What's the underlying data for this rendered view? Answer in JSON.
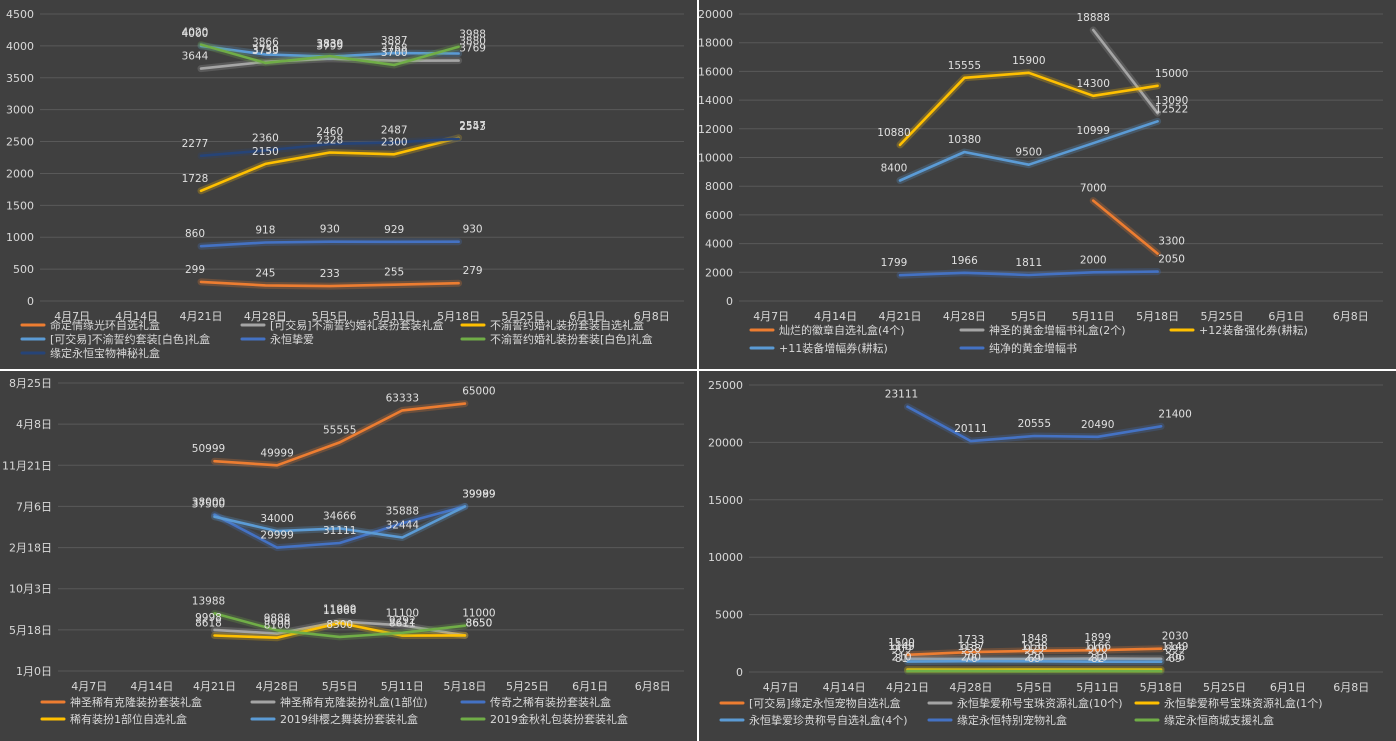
{
  "colors": {
    "orange": "#ed7d31",
    "gray": "#a5a5a5",
    "yellow": "#ffc000",
    "lightblue": "#5b9bd5",
    "blue": "#4472c4",
    "green": "#70ad47",
    "navy": "#264478"
  },
  "chart_data": [
    {
      "type": "line",
      "categories": [
        "4月7日",
        "4月14日",
        "4月21日",
        "4月28日",
        "5月5日",
        "5月11日",
        "5月18日",
        "5月25日",
        "6月1日",
        "6月8日"
      ],
      "y_ticks": [
        "0",
        "500",
        "1000",
        "1500",
        "2000",
        "2500",
        "3000",
        "3500",
        "4000",
        "4500"
      ],
      "ylim": [
        0,
        4500
      ],
      "grid": "horizontal",
      "legend_position": "bottom",
      "series": [
        {
          "name": "命定情缘光环自选礼盒",
          "color": "orange",
          "values": [
            null,
            null,
            299,
            245,
            233,
            255,
            279,
            null,
            null,
            null
          ],
          "labels": [
            "299",
            "245",
            "233",
            "255",
            "279"
          ]
        },
        {
          "name": "[可交易]不渝誓约婚礼装扮套装礼盒",
          "color": "gray",
          "values": [
            null,
            null,
            3644,
            3750,
            3799,
            3768,
            3769,
            null,
            null,
            null
          ],
          "labels": [
            "3644",
            "3750",
            "3799",
            "3768",
            "3769"
          ]
        },
        {
          "name": "不渝誓约婚礼装扮套装自选礼盒",
          "color": "yellow",
          "values": [
            null,
            null,
            1728,
            2150,
            2328,
            2300,
            2557,
            null,
            null,
            null
          ],
          "labels": [
            "1728",
            "2150",
            "2328",
            "2300",
            "2557"
          ]
        },
        {
          "name": "[可交易]不渝誓约套装[白色]礼盒",
          "color": "lightblue",
          "values": [
            null,
            null,
            4000,
            3866,
            3830,
            3887,
            3880,
            null,
            null,
            null
          ],
          "labels": [
            "4000",
            "3866",
            "3830",
            "3887",
            "3880"
          ]
        },
        {
          "name": "永恒挚爱",
          "color": "blue",
          "values": [
            null,
            null,
            860,
            918,
            930,
            929,
            930,
            null,
            null,
            null
          ],
          "labels": [
            "860",
            "918",
            "930",
            "929",
            "930"
          ]
        },
        {
          "name": "不渝誓约婚礼装扮套装[白色]礼盒",
          "color": "green",
          "values": [
            null,
            null,
            4020,
            3733,
            3839,
            3700,
            3988,
            null,
            null,
            null
          ],
          "labels": [
            "4020",
            "3733",
            "3839",
            "3700",
            "3988"
          ]
        },
        {
          "name": "缘定永恒宝物神秘礼盒",
          "color": "navy",
          "values": [
            null,
            null,
            2277,
            2360,
            2460,
            2487,
            2543,
            null,
            null,
            null
          ],
          "labels": [
            "2277",
            "2360",
            "2460",
            "2487",
            "2543"
          ]
        }
      ]
    },
    {
      "type": "line",
      "categories": [
        "4月7日",
        "4月14日",
        "4月21日",
        "4月28日",
        "5月5日",
        "5月11日",
        "5月18日",
        "5月25日",
        "6月1日",
        "6月8日"
      ],
      "y_ticks": [
        "0",
        "2000",
        "4000",
        "6000",
        "8000",
        "10000",
        "12000",
        "14000",
        "16000",
        "18000",
        "20000"
      ],
      "ylim": [
        0,
        20000
      ],
      "grid": "horizontal",
      "legend_position": "bottom",
      "series": [
        {
          "name": "灿烂的徽章自选礼盒(4个)",
          "color": "orange",
          "values": [
            null,
            null,
            null,
            null,
            null,
            7000,
            3300,
            null,
            null,
            null
          ],
          "labels": [
            "7000",
            "3300"
          ]
        },
        {
          "name": "神圣的黄金增幅书礼盒(2个)",
          "color": "gray",
          "values": [
            null,
            null,
            null,
            null,
            null,
            18888,
            13090,
            null,
            null,
            null
          ],
          "labels": [
            "18888",
            "13090"
          ]
        },
        {
          "name": "+12装备强化券(耕耘)",
          "color": "yellow",
          "values": [
            null,
            null,
            10880,
            15555,
            15900,
            14300,
            15000,
            null,
            null,
            null
          ],
          "labels": [
            "10880",
            "15555",
            "15900",
            "14300",
            "15000"
          ]
        },
        {
          "name": "+11装备增幅券(耕耘)",
          "color": "lightblue",
          "values": [
            null,
            null,
            8400,
            10380,
            9500,
            10999,
            12522,
            null,
            null,
            null
          ],
          "labels": [
            "8400",
            "10380",
            "9500",
            "10999",
            "12522"
          ]
        },
        {
          "name": "纯净的黄金增幅书",
          "color": "blue",
          "values": [
            null,
            null,
            1799,
            1966,
            1811,
            2000,
            2050,
            null,
            null,
            null
          ],
          "labels": [
            "1799",
            "1966",
            "1811",
            "2000",
            "2050"
          ]
        }
      ]
    },
    {
      "type": "line",
      "categories": [
        "4月7日",
        "4月14日",
        "4月21日",
        "4月28日",
        "5月5日",
        "5月11日",
        "5月18日",
        "5月25日",
        "6月1日",
        "6月8日"
      ],
      "y_ticks": [
        "1月0日",
        "5月18日",
        "10月3日",
        "2月18日",
        "7月6日",
        "11月21日",
        "4月8日",
        "8月25日"
      ],
      "ylim": [
        0,
        70000
      ],
      "grid": "horizontal",
      "legend_position": "bottom",
      "series": [
        {
          "name": "神圣稀有克隆装扮套装礼盒",
          "color": "orange",
          "values": [
            null,
            null,
            50999,
            49999,
            55555,
            63333,
            65000,
            null,
            null,
            null
          ],
          "labels": [
            "50999",
            "49999",
            "55555",
            "63333",
            "65000"
          ]
        },
        {
          "name": "神圣稀有克隆装扮礼盒(1部位)",
          "color": "gray",
          "values": [
            null,
            null,
            9998,
            9098,
            11999,
            11100,
            8650,
            null,
            null,
            null
          ],
          "labels": [
            "9998",
            "9098",
            "11999",
            "11100",
            "8650"
          ]
        },
        {
          "name": "传奇之稀有装扮套装礼盒",
          "color": "blue",
          "values": [
            null,
            null,
            38000,
            29999,
            31111,
            35888,
            39999,
            null,
            null,
            null
          ],
          "labels": [
            "38000",
            "29999",
            "31111",
            "35888",
            "39999"
          ]
        },
        {
          "name": "稀有装扮1部位自选礼盒",
          "color": "yellow",
          "values": [
            null,
            null,
            8618,
            8100,
            11666,
            8611,
            8650,
            null,
            null,
            null
          ],
          "labels": [
            "8618",
            "8100",
            "11666",
            "8611",
            "8650"
          ]
        },
        {
          "name": "2019绯樱之舞装扮套装礼盒",
          "color": "lightblue",
          "values": [
            null,
            null,
            37500,
            34000,
            34666,
            32444,
            39989,
            null,
            null,
            null
          ],
          "labels": [
            "37500",
            "34000",
            "34666",
            "32444",
            "39989"
          ]
        },
        {
          "name": "2019金秋礼包装扮套装礼盒",
          "color": "green",
          "values": [
            null,
            null,
            13988,
            9888,
            8300,
            9292,
            11000,
            null,
            null,
            null
          ],
          "labels": [
            "13988",
            "9888",
            "8300",
            "9292",
            "11000"
          ]
        }
      ]
    },
    {
      "type": "line",
      "categories": [
        "4月7日",
        "4月14日",
        "4月21日",
        "4月28日",
        "5月5日",
        "5月11日",
        "5月18日",
        "5月25日",
        "6月1日",
        "6月8日"
      ],
      "y_ticks": [
        "0",
        "5000",
        "10000",
        "15000",
        "20000",
        "25000"
      ],
      "ylim": [
        0,
        25000
      ],
      "grid": "horizontal",
      "legend_position": "bottom",
      "series": [
        {
          "name": "[可交易]缘定永恒宠物自选礼盒",
          "color": "orange",
          "values": [
            null,
            null,
            1500,
            1733,
            1848,
            1899,
            2030,
            null,
            null,
            null
          ],
          "labels": [
            "1500",
            "1733",
            "1848",
            "1899",
            "2030"
          ]
        },
        {
          "name": "永恒挚爱称号宝珠资源礼盒(10个)",
          "color": "gray",
          "values": [
            null,
            null,
            1149,
            1137,
            1138,
            1166,
            1149,
            null,
            null,
            null
          ],
          "labels": [
            "1149",
            "1137",
            "1138",
            "1166",
            "1149"
          ]
        },
        {
          "name": "永恒挚爱称号宝珠资源礼盒(1个)",
          "color": "yellow",
          "values": [
            null,
            null,
            210,
            200,
            220,
            210,
            206,
            null,
            null,
            null
          ],
          "labels": [
            "210",
            "200",
            "220",
            "210",
            "206"
          ]
        },
        {
          "name": "永恒挚爱珍贵称号自选礼盒(4个)",
          "color": "lightblue",
          "values": [
            null,
            null,
            909,
            938,
            929,
            900,
            899,
            null,
            null,
            null
          ],
          "labels": [
            "909",
            "938",
            "929",
            "900",
            "899"
          ]
        },
        {
          "name": "缘定永恒特别宠物礼盒",
          "color": "blue",
          "values": [
            null,
            null,
            23111,
            20111,
            20555,
            20490,
            21400,
            null,
            null,
            null
          ],
          "labels": [
            "23111",
            "20111",
            "20555",
            "20490",
            "21400"
          ]
        },
        {
          "name": "缘定永恒商城支援礼盒",
          "color": "green",
          "values": [
            null,
            null,
            81,
            76,
            69,
            82,
            69,
            null,
            null,
            null
          ],
          "labels": [
            "81",
            "76",
            "69",
            "82",
            "69"
          ]
        }
      ]
    }
  ]
}
